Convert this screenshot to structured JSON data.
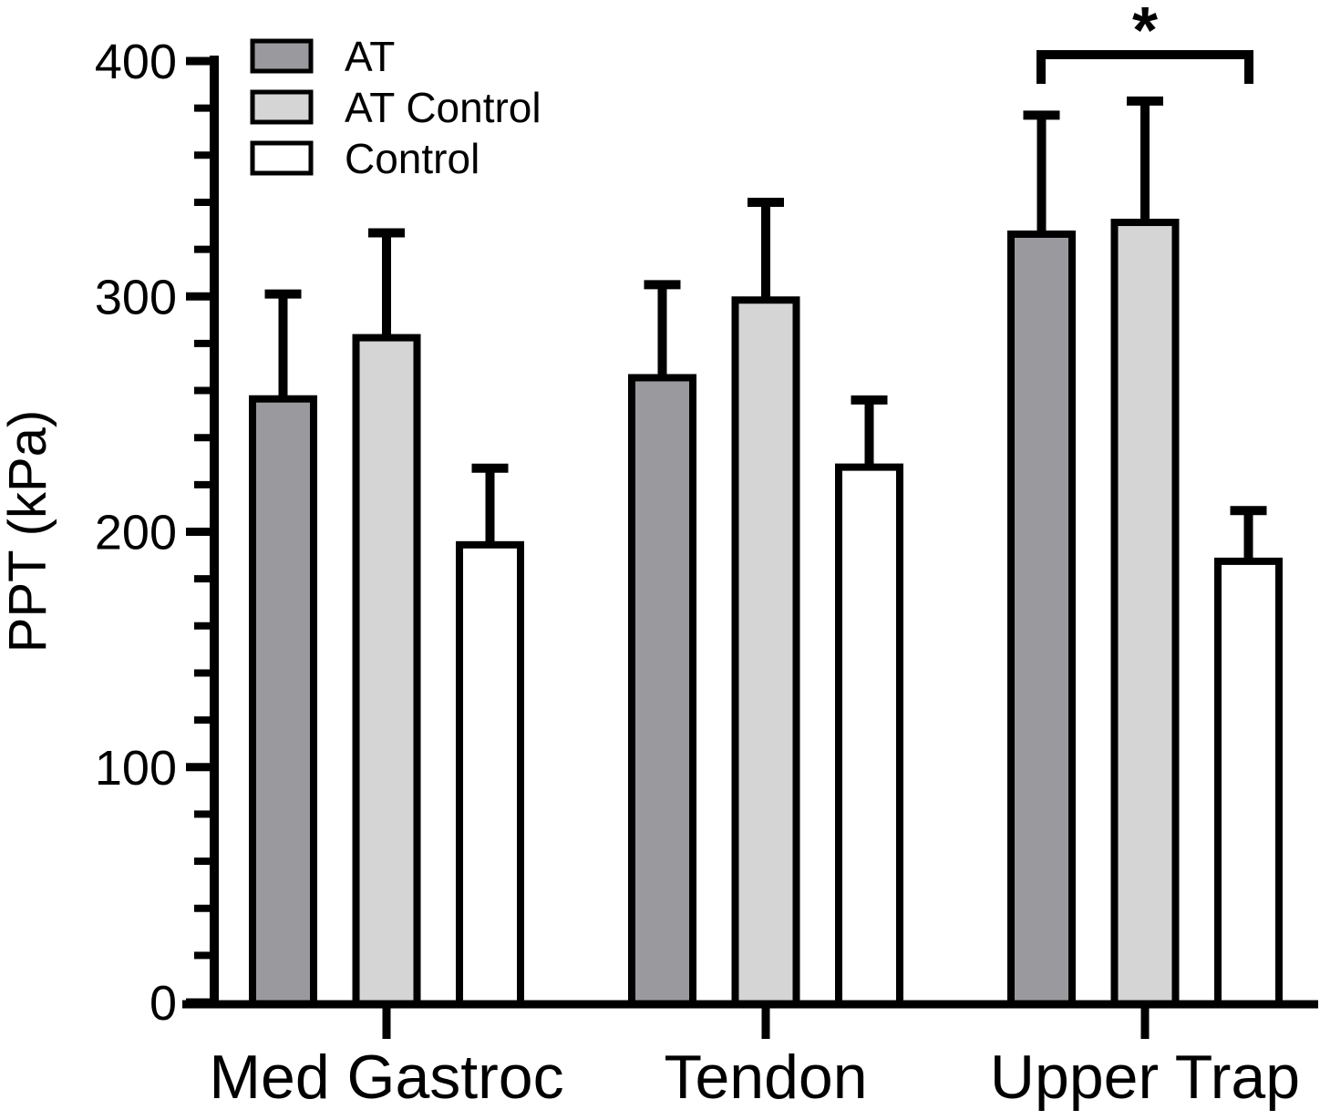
{
  "chart_data": {
    "type": "bar",
    "title": "",
    "ylabel": "PPT (kPa)",
    "xlabel": "",
    "ylim": [
      0,
      400
    ],
    "yticks_major": [
      0,
      100,
      200,
      300,
      400
    ],
    "ytick_minor_step": 20,
    "grid": false,
    "legend_position": "top-left",
    "categories": [
      "Med Gastroc",
      "Tendon",
      "Upper Trap"
    ],
    "series": [
      {
        "name": "AT",
        "color": "#9a9a9e",
        "values": [
          258,
          267,
          328
        ],
        "errors_plus": [
          43,
          38,
          49
        ]
      },
      {
        "name": "AT Control",
        "color": "#d5d5d5",
        "values": [
          284,
          300,
          333
        ],
        "errors_plus": [
          43,
          40,
          50
        ]
      },
      {
        "name": "Control",
        "color": "#ffffff",
        "values": [
          196,
          229,
          189
        ],
        "errors_plus": [
          31,
          27,
          20
        ]
      }
    ],
    "error_bar_style": "upper-only",
    "annotation": {
      "text": "*",
      "category": "Upper Trap",
      "from_series": "AT",
      "to_series": "Control"
    },
    "axis_color": "#000000",
    "background_color": "#ffffff"
  }
}
